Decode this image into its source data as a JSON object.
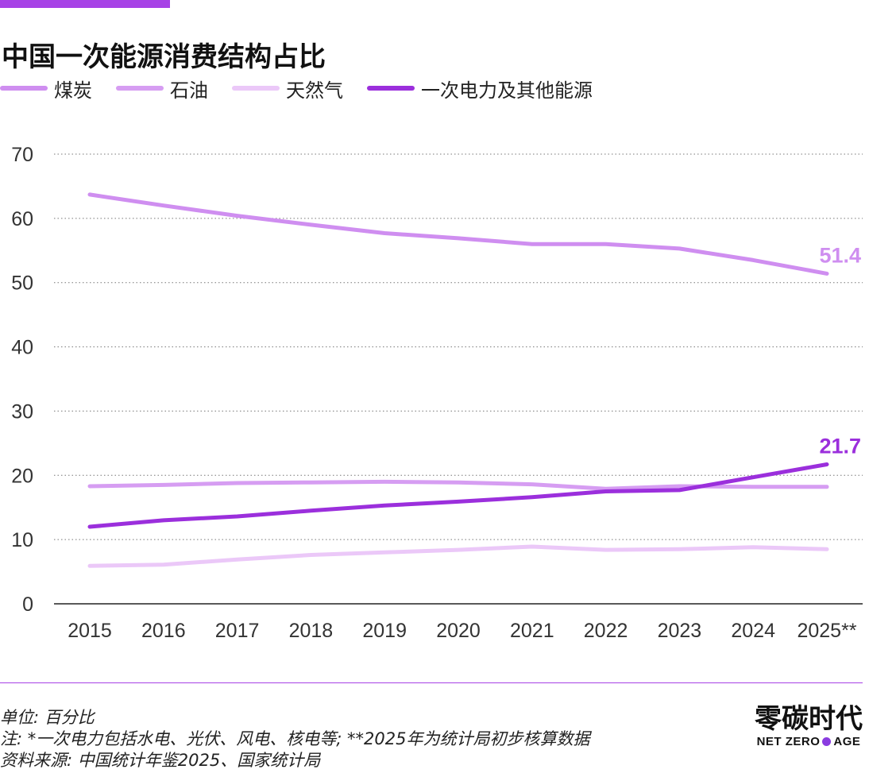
{
  "title": "中国一次能源消费结构占比",
  "colors": {
    "accent": "#a742e6",
    "coal": "#cf8ef0",
    "oil": "#d69df2",
    "gas": "#ebc8f8",
    "primary_power": "#9b2fdc"
  },
  "chart_data": {
    "type": "line",
    "title": "中国一次能源消费结构占比",
    "xlabel": "",
    "ylabel": "",
    "categories": [
      "2015",
      "2016",
      "2017",
      "2018",
      "2019",
      "2020",
      "2021",
      "2022",
      "2023",
      "2024",
      "2025**"
    ],
    "yticks": [
      "0",
      "10",
      "20",
      "30",
      "40",
      "50",
      "60",
      "70"
    ],
    "ylim": [
      0,
      70
    ],
    "grid": true,
    "legend_position": "top-left",
    "series": [
      {
        "name": "煤炭",
        "color": "#cf8ef0",
        "values": [
          63.7,
          62.0,
          60.4,
          59.0,
          57.7,
          56.9,
          56.0,
          56.0,
          55.3,
          53.5,
          51.4
        ],
        "end_label": "51.4"
      },
      {
        "name": "石油",
        "color": "#d69df2",
        "values": [
          18.3,
          18.5,
          18.8,
          18.9,
          19.0,
          18.9,
          18.6,
          17.9,
          18.3,
          18.2,
          18.2
        ],
        "end_label": ""
      },
      {
        "name": "天然气",
        "color": "#ebc8f8",
        "values": [
          5.9,
          6.1,
          6.9,
          7.6,
          8.0,
          8.4,
          8.9,
          8.4,
          8.5,
          8.8,
          8.5
        ],
        "end_label": ""
      },
      {
        "name": "一次电力及其他能源",
        "color": "#9b2fdc",
        "values": [
          12.0,
          13.0,
          13.6,
          14.5,
          15.3,
          15.9,
          16.6,
          17.5,
          17.7,
          19.7,
          21.7
        ],
        "end_label": "21.7"
      }
    ]
  },
  "footnotes": {
    "unit": "单位: 百分比",
    "note": "注: *一次电力包括水电、光伏、风电、核电等; **2025年为统计局初步核算数据",
    "source": "资料来源: 中国统计年鉴2025、国家统计局"
  },
  "brand": {
    "cn": "零碳时代",
    "en_left": "NET ZERO",
    "en_right": "AGE"
  }
}
